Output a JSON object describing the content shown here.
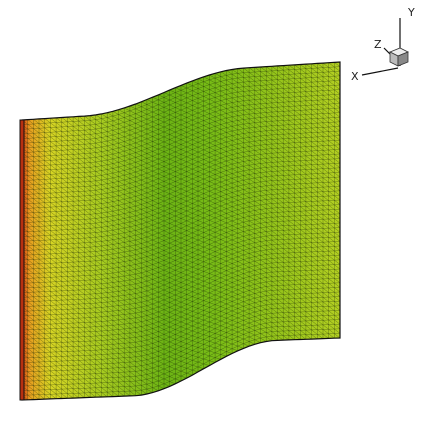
{
  "axis_triad": {
    "x": "X",
    "y": "Y",
    "z": "Z"
  }
}
